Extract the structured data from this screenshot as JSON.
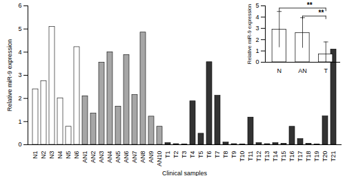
{
  "chart_data": [
    {
      "type": "bar",
      "x_label": "Clinical samples",
      "y_label": "Relative miR-9 expression",
      "categories": [
        "N1",
        "N2",
        "N3",
        "N4",
        "N5",
        "N6",
        "AN1",
        "AN2",
        "AN3",
        "AN4",
        "AN5",
        "AN6",
        "AN7",
        "AN8",
        "AN9",
        "AN10",
        "T1",
        "T2",
        "T3",
        "T4",
        "T5",
        "T6",
        "T7",
        "T8",
        "T9",
        "T10",
        "T11",
        "T12",
        "T13",
        "T14",
        "T15",
        "T16",
        "T17",
        "T18",
        "T19",
        "T20",
        "T21"
      ],
      "values": [
        2.4,
        2.75,
        5.1,
        2.0,
        0.78,
        4.22,
        2.1,
        1.35,
        3.55,
        4.0,
        1.65,
        3.88,
        2.15,
        4.85,
        1.22,
        0.78,
        0.08,
        0.03,
        0.02,
        1.88,
        0.48,
        3.57,
        2.12,
        0.1,
        0.03,
        0.02,
        1.18,
        0.08,
        0.03,
        0.08,
        0.05,
        0.78,
        0.25,
        0.05,
        0.02,
        1.23,
        4.12
      ],
      "colors": [
        "#ffffff",
        "#ffffff",
        "#ffffff",
        "#ffffff",
        "#ffffff",
        "#ffffff",
        "#a6a6a6",
        "#a6a6a6",
        "#a6a6a6",
        "#a6a6a6",
        "#a6a6a6",
        "#a6a6a6",
        "#a6a6a6",
        "#a6a6a6",
        "#a6a6a6",
        "#a6a6a6",
        "#333333",
        "#333333",
        "#333333",
        "#333333",
        "#333333",
        "#333333",
        "#333333",
        "#333333",
        "#333333",
        "#333333",
        "#333333",
        "#333333",
        "#333333",
        "#333333",
        "#333333",
        "#333333",
        "#333333",
        "#333333",
        "#333333",
        "#333333",
        "#333333"
      ],
      "ylim": [
        0,
        6
      ],
      "yticks": [
        0,
        1,
        2,
        3,
        4,
        5,
        6
      ],
      "grid": false
    },
    {
      "type": "bar",
      "y_label": "Relative miR-9 expression",
      "categories": [
        "N",
        "AN",
        "T"
      ],
      "values": [
        2.9,
        2.6,
        0.7
      ],
      "errors": [
        1.6,
        1.35,
        1.1
      ],
      "colors": [
        "#ffffff",
        "#ffffff",
        "#ffffff"
      ],
      "ylim": [
        0,
        5
      ],
      "yticks": [
        0,
        1,
        2,
        3,
        4,
        5
      ],
      "annotations": [
        {
          "text": "**",
          "from": "N",
          "to": "T"
        },
        {
          "text": "**",
          "from": "AN",
          "to": "T"
        }
      ],
      "grid": false
    }
  ]
}
